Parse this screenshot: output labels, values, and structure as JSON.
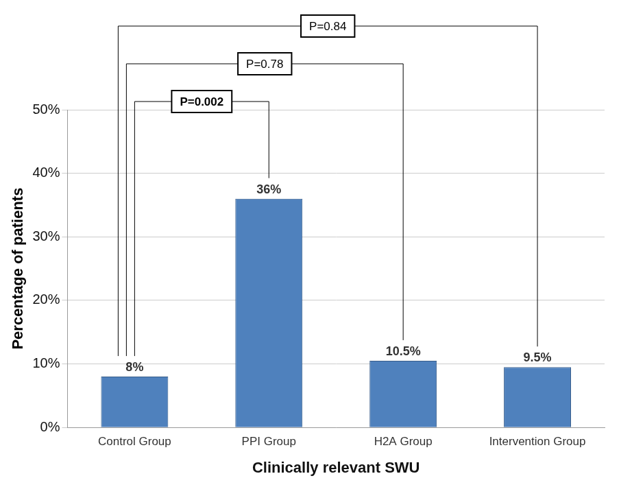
{
  "chart_data": {
    "type": "bar",
    "categories": [
      "Control Group",
      "PPI Group",
      "H2A Group",
      "Intervention Group"
    ],
    "values": [
      8,
      36,
      10.5,
      9.5
    ],
    "value_labels": [
      "8%",
      "36%",
      "10.5%",
      "9.5%"
    ],
    "data_labels": true,
    "color": "#4f81bd",
    "x_label": "Clinically relevant SWU",
    "y_label": "Percentage of patients",
    "ylim": [
      0,
      50
    ],
    "yticks": [
      {
        "value": 0,
        "label": "0%"
      },
      {
        "value": 10,
        "label": "10%"
      },
      {
        "value": 20,
        "label": "20%"
      },
      {
        "value": 30,
        "label": "30%"
      },
      {
        "value": 40,
        "label": "40%"
      },
      {
        "value": 50,
        "label": "50%"
      }
    ],
    "grid": true,
    "comparisons": [
      {
        "categories": [
          "Control Group",
          "PPI Group"
        ],
        "label": "P=0.002"
      },
      {
        "categories": [
          "Control Group",
          "H2A Group"
        ],
        "label": "P=0.78"
      },
      {
        "categories": [
          "Control Group",
          "Intervention Group"
        ],
        "label": "P=0.84"
      }
    ]
  }
}
